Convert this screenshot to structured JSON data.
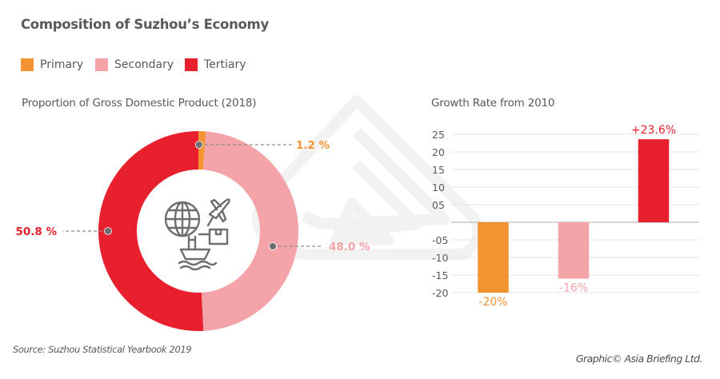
{
  "title": "Composition of Suzhou’s Economy",
  "legend": [
    {
      "label": "Primary",
      "color": "#f39332"
    },
    {
      "label": "Secondary",
      "color": "#f4a4a9"
    },
    {
      "label": "Tertiary",
      "color": "#e8202d"
    }
  ],
  "center_icon": "global-trade-icon",
  "source": "Source: Suzhou Statistical Yearbook 2019",
  "credit": "Graphic© Asia Briefing Ltd.",
  "chart_data": [
    {
      "type": "pie",
      "variant": "donut",
      "title": "Proportion of Gross Domestic Product (2018)",
      "categories": [
        "Primary",
        "Secondary",
        "Tertiary"
      ],
      "values": [
        1.2,
        48.0,
        50.8
      ],
      "labels": [
        "1.2 %",
        "48.0 %",
        "50.8 %"
      ],
      "colors": [
        "#f39332",
        "#f4a4a9",
        "#e8202d"
      ],
      "start": "top, clockwise"
    },
    {
      "type": "bar",
      "title": "Growth Rate from 2010",
      "categories": [
        "Primary",
        "Secondary",
        "Tertiary"
      ],
      "values": [
        -20,
        -16,
        23.6
      ],
      "labels": [
        "-20%",
        "-16%",
        "+23.6%"
      ],
      "colors": [
        "#f39332",
        "#f4a4a9",
        "#e8202d"
      ],
      "ylim": [
        -20,
        25
      ],
      "yticks": [
        25,
        20,
        15,
        10,
        5,
        -5,
        -10,
        -15,
        -20
      ],
      "ytick_labels": [
        "25",
        "20",
        "15",
        "10",
        "05",
        "-05",
        "-10",
        "-15",
        "-20"
      ],
      "xlabel": "",
      "ylabel": "",
      "grid": true
    }
  ]
}
